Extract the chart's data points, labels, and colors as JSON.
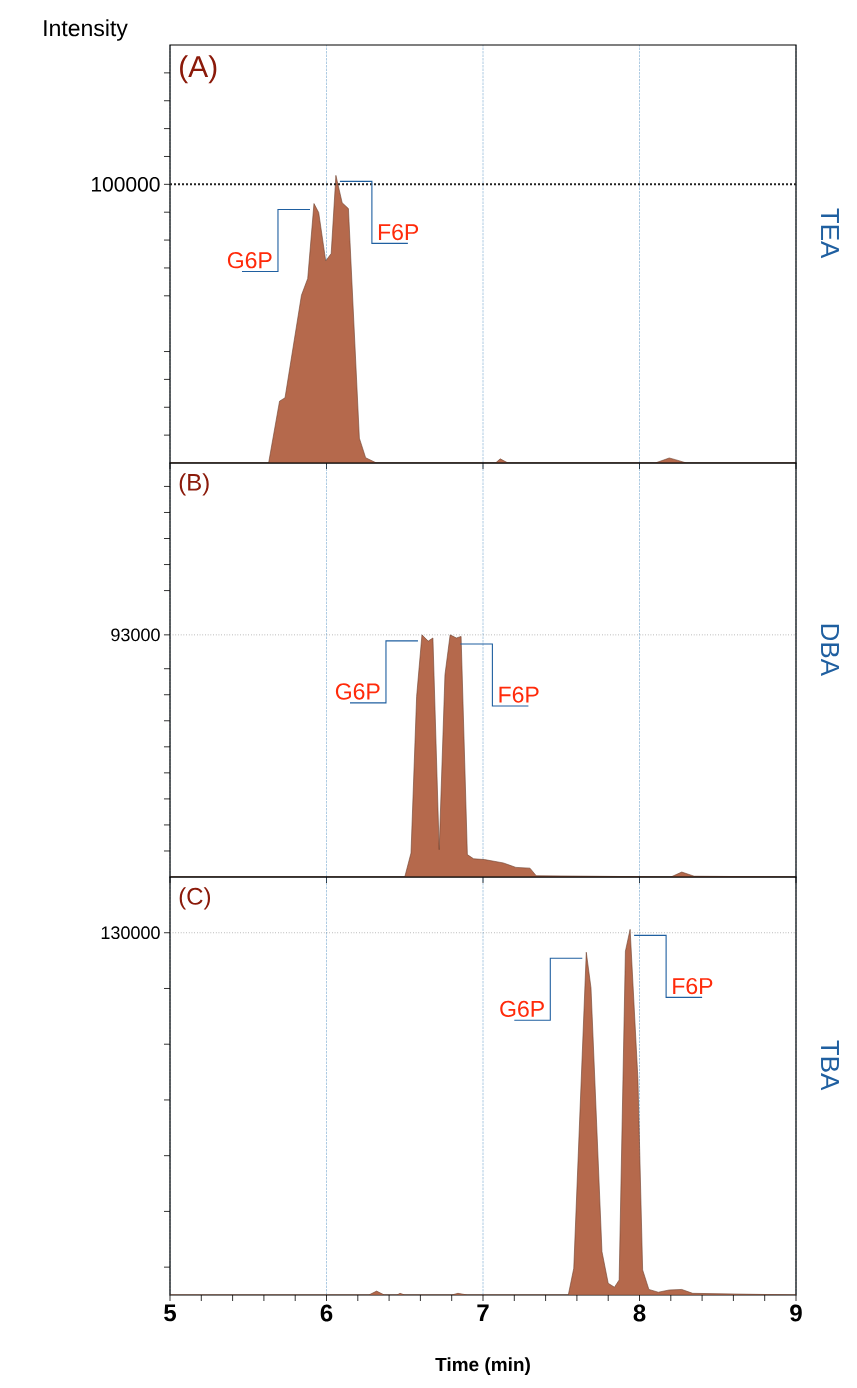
{
  "chart_data": [
    {
      "type": "area",
      "ylabel": "Intensity",
      "xlim": [
        5,
        9
      ],
      "ylim": [
        0,
        150000
      ],
      "xticks": [
        5,
        6,
        7,
        8,
        9
      ],
      "tick_labels": "y",
      "grid": "x",
      "yticks": [
        {
          "value": 10000,
          "label": null
        },
        {
          "value": 20000,
          "label": null
        },
        {
          "value": 30000,
          "label": null
        },
        {
          "value": 40000,
          "label": null
        },
        {
          "value": 60000,
          "label": null
        },
        {
          "value": 70000,
          "label": null
        },
        {
          "value": 80000,
          "label": null
        },
        {
          "value": 90000,
          "label": null
        },
        100000,
        {
          "value": 110000,
          "label": null
        },
        {
          "value": 120000,
          "label": null
        },
        {
          "value": 130000,
          "label": null
        },
        {
          "value": 140000,
          "label": null
        }
      ],
      "x": [
        5,
        5.5,
        5.63,
        5.7,
        5.735,
        5.84,
        5.88,
        5.92,
        5.95,
        5.995,
        6.03,
        6.06,
        6.1,
        6.14,
        6.21,
        6.25,
        6.32,
        7.0,
        7.08,
        7.11,
        7.16,
        8.1,
        8.19,
        8.23,
        8.3,
        9
      ],
      "series": [
        {
          "color": "#b5694c",
          "values": [
            0,
            0,
            0,
            22200,
            23400,
            60200,
            66200,
            93100,
            89900,
            72500,
            75200,
            103200,
            93400,
            91300,
            8900,
            1900,
            0,
            0,
            0,
            1500,
            0,
            0,
            1800,
            1200,
            0,
            0
          ]
        }
      ],
      "ref_lines": [
        {
          "axis": "y",
          "value": 100000,
          "color": "#222222",
          "line_style": "dotted"
        }
      ],
      "annotations": [
        "(A)",
        "TEA",
        {
          "text": "G6P",
          "x": 5.92,
          "y": 93100
        },
        {
          "text": "F6P",
          "x": 6.06,
          "y": 103200
        }
      ]
    },
    {
      "type": "area",
      "xlim": [
        5,
        9
      ],
      "ylim": [
        0,
        159000
      ],
      "xticks": [
        5,
        6,
        7,
        8,
        9
      ],
      "tick_labels": "y",
      "grid": "x",
      "yticks": [
        {
          "value": 10000,
          "label": null
        },
        {
          "value": 20000,
          "label": null
        },
        {
          "value": 30000,
          "label": null
        },
        {
          "value": 40000,
          "label": null
        },
        {
          "value": 50000,
          "label": null
        },
        {
          "value": 60000,
          "label": null
        },
        {
          "value": 70000,
          "label": null
        },
        {
          "value": 80000,
          "label": null
        },
        93000,
        {
          "value": 110000,
          "label": null
        },
        {
          "value": 120000,
          "label": null
        },
        {
          "value": 130000,
          "label": null
        },
        {
          "value": 140000,
          "label": null
        },
        {
          "value": 150000,
          "label": null
        }
      ],
      "x": [
        5,
        6.5,
        6.54,
        6.576,
        6.61,
        6.65,
        6.68,
        6.72,
        6.757,
        6.79,
        6.83,
        6.86,
        6.9,
        6.94,
        7.01,
        7.13,
        7.21,
        7.3,
        7.34,
        8.2,
        8.27,
        8.35,
        9
      ],
      "series": [
        {
          "color": "#b5694c",
          "values": [
            0,
            0,
            9200,
            69400,
            93000,
            90600,
            91800,
            10500,
            77700,
            93000,
            91800,
            92400,
            8600,
            7000,
            6700,
            5400,
            3700,
            3400,
            500,
            0,
            1900,
            300,
            0
          ]
        }
      ],
      "ref_lines": [
        {
          "axis": "y",
          "value": 93000,
          "color": "#777777",
          "line_style": "dotted"
        }
      ],
      "annotations": [
        "(B)",
        "DBA",
        {
          "text": "G6P",
          "x": 6.61,
          "y": 93000
        },
        {
          "text": "F6P",
          "x": 6.83,
          "y": 91800
        }
      ]
    },
    {
      "type": "area",
      "xlabel": "Time (min)",
      "xlim": [
        5,
        9
      ],
      "ylim": [
        0,
        150000
      ],
      "grid": "x",
      "xticks": [
        5,
        {
          "value": 5.2,
          "label": null
        },
        {
          "value": 5.4,
          "label": null
        },
        {
          "value": 5.6,
          "label": null
        },
        {
          "value": 5.8,
          "label": null
        },
        6,
        {
          "value": 6.2,
          "label": null
        },
        {
          "value": 6.4,
          "label": null
        },
        {
          "value": 6.6,
          "label": null
        },
        {
          "value": 6.8,
          "label": null
        },
        7,
        {
          "value": 7.2,
          "label": null
        },
        {
          "value": 7.4,
          "label": null
        },
        {
          "value": 7.6,
          "label": null
        },
        {
          "value": 7.8,
          "label": null
        },
        8,
        {
          "value": 8.2,
          "label": null
        },
        {
          "value": 8.4,
          "label": null
        },
        {
          "value": 8.6,
          "label": null
        },
        {
          "value": 8.8,
          "label": null
        },
        9
      ],
      "yticks": [
        {
          "value": 10000,
          "label": null
        },
        {
          "value": 30000,
          "label": null
        },
        {
          "value": 50000,
          "label": null
        },
        {
          "value": 70000,
          "label": null
        },
        {
          "value": 90000,
          "label": null
        },
        {
          "value": 110000,
          "label": null
        },
        130000
      ],
      "x": [
        5,
        6.27,
        6.32,
        6.37,
        6.45,
        6.47,
        6.5,
        6.8,
        6.84,
        6.9,
        7.545,
        7.58,
        7.66,
        7.69,
        7.76,
        7.8,
        7.84,
        7.87,
        7.91,
        7.94,
        7.99,
        8.02,
        8.06,
        8.12,
        8.19,
        8.27,
        8.34,
        9
      ],
      "series": [
        {
          "color": "#b5694c",
          "values": [
            0,
            0,
            1400,
            0,
            0,
            600,
            0,
            0,
            600,
            0,
            0,
            9600,
            123000,
            110200,
            15600,
            4200,
            2800,
            5400,
            123400,
            131200,
            77300,
            9000,
            2000,
            1000,
            1800,
            2000,
            600,
            0
          ]
        }
      ],
      "ref_lines": [
        {
          "axis": "y",
          "value": 130000,
          "color": "#777777",
          "line_style": "dotted"
        }
      ],
      "annotations": [
        "(C)",
        "TBA",
        {
          "text": "G6P",
          "x": 7.66,
          "y": 123000
        },
        {
          "text": "F6P",
          "x": 7.94,
          "y": 131200
        }
      ]
    }
  ]
}
